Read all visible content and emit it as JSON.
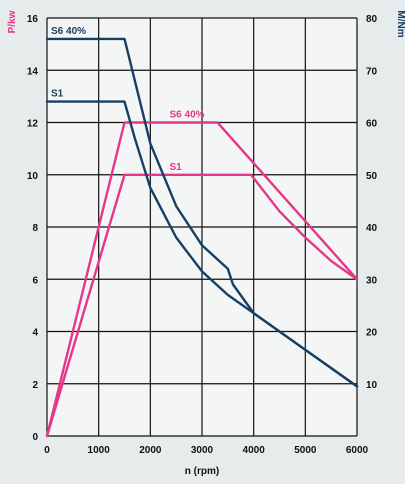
{
  "chart_data": {
    "type": "line",
    "xlabel": "n (rpm)",
    "ylabel_left": "P/kw",
    "ylabel_right": "M/Nm",
    "xlim": [
      0,
      6000
    ],
    "ylim_left": [
      0,
      16
    ],
    "ylim_right": [
      0,
      80
    ],
    "x_ticks": [
      0,
      1000,
      2000,
      3000,
      4000,
      5000,
      6000
    ],
    "y_ticks_left": [
      0,
      2,
      4,
      6,
      8,
      10,
      12,
      14,
      16
    ],
    "y_ticks_right": [
      10,
      20,
      30,
      40,
      50,
      60,
      70,
      80
    ],
    "grid": true,
    "colors": {
      "power": "#e5368a",
      "torque": "#183f63"
    },
    "series": [
      {
        "name": "S6 40%",
        "quantity": "power",
        "axis": "left",
        "x": [
          0,
          1500,
          3300,
          6000
        ],
        "y": [
          0,
          12.0,
          12.0,
          6.0
        ]
      },
      {
        "name": "S1",
        "quantity": "power",
        "axis": "left",
        "x": [
          0,
          1500,
          3950,
          4500,
          5000,
          5500,
          6000
        ],
        "y": [
          0,
          10.0,
          10.0,
          8.6,
          7.6,
          6.7,
          6.0
        ]
      },
      {
        "name": "S6 40%",
        "quantity": "torque",
        "axis": "right",
        "x": [
          0,
          1500,
          1600,
          2000,
          2500,
          3000,
          3500,
          3600,
          4000,
          5000,
          6000
        ],
        "y": [
          76,
          76,
          72,
          56,
          44,
          36.5,
          32,
          29,
          23.5,
          16.5,
          9.5
        ]
      },
      {
        "name": "S1",
        "quantity": "torque",
        "axis": "right",
        "x": [
          0,
          1500,
          1700,
          2000,
          2500,
          3000,
          3500,
          4000,
          5000,
          6000
        ],
        "y": [
          64,
          64,
          57,
          47.5,
          38,
          31.5,
          27,
          23.5,
          16.5,
          9.5
        ]
      }
    ]
  }
}
